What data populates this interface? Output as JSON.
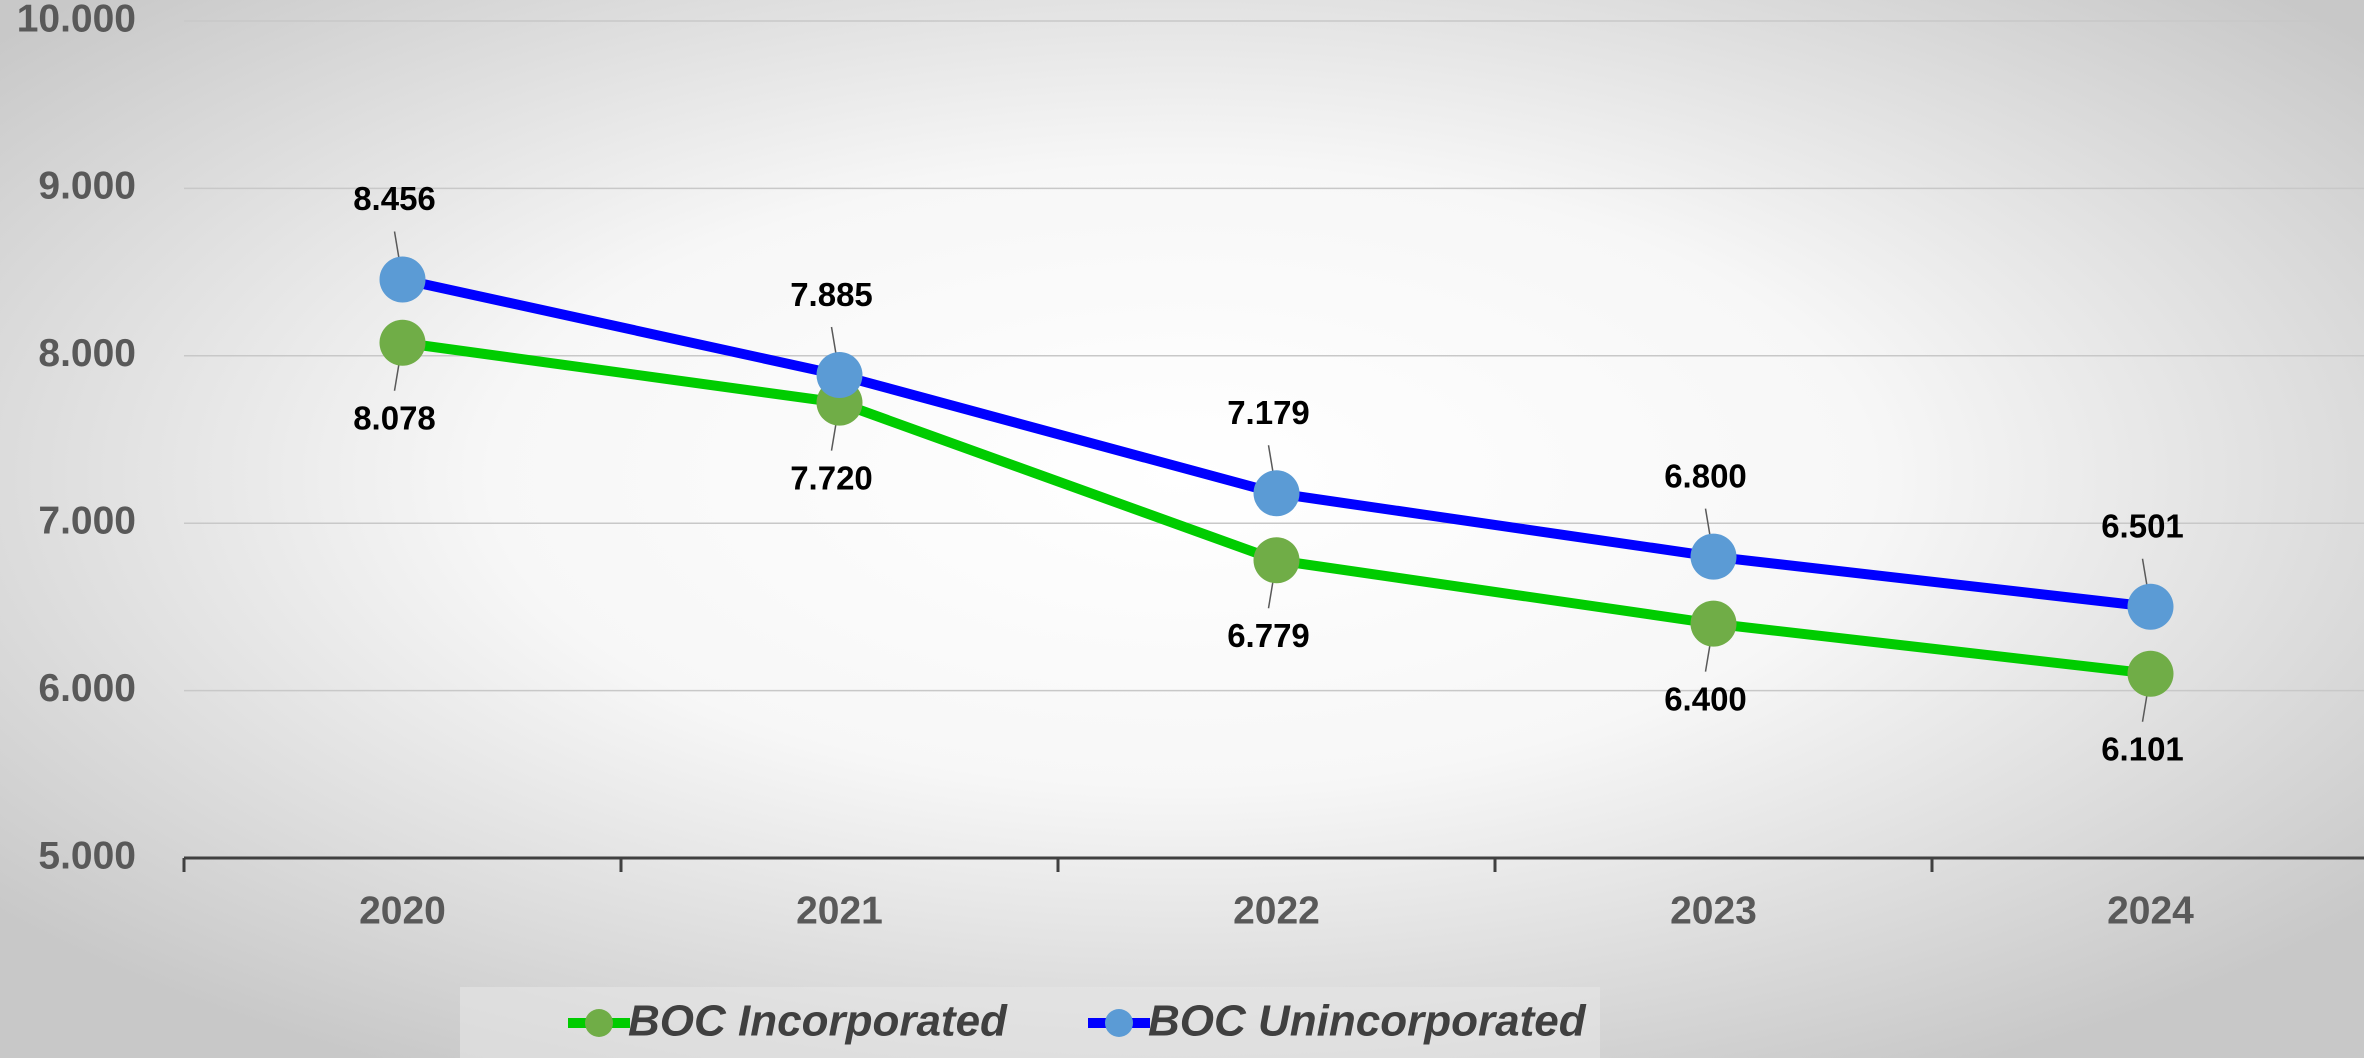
{
  "chart_data": {
    "type": "line",
    "categories": [
      "2020",
      "2021",
      "2022",
      "2023",
      "2024"
    ],
    "series": [
      {
        "name": "BOC Incorporated",
        "color": "#00cc00",
        "marker_color": "#70ad47",
        "values": [
          8078,
          7720,
          6779,
          6400,
          6101
        ],
        "value_labels": [
          "8.078",
          "7.720",
          "6.779",
          "6.400",
          "6.101"
        ]
      },
      {
        "name": "BOC Unincorporated",
        "color": "#0000ff",
        "marker_color": "#5b9bd5",
        "values": [
          8456,
          7885,
          7179,
          6800,
          6501
        ],
        "value_labels": [
          "8.456",
          "7.885",
          "7.179",
          "6.800",
          "6.501"
        ]
      }
    ],
    "ylim": [
      5000,
      10000
    ],
    "yticks": [
      {
        "value": 5000,
        "label": "5.000"
      },
      {
        "value": 6000,
        "label": "6.000"
      },
      {
        "value": 7000,
        "label": "7.000"
      },
      {
        "value": 8000,
        "label": "8.000"
      },
      {
        "value": 9000,
        "label": "9.000"
      },
      {
        "value": 10000,
        "label": "10.000"
      }
    ],
    "grid": true,
    "legend": "bottom"
  }
}
